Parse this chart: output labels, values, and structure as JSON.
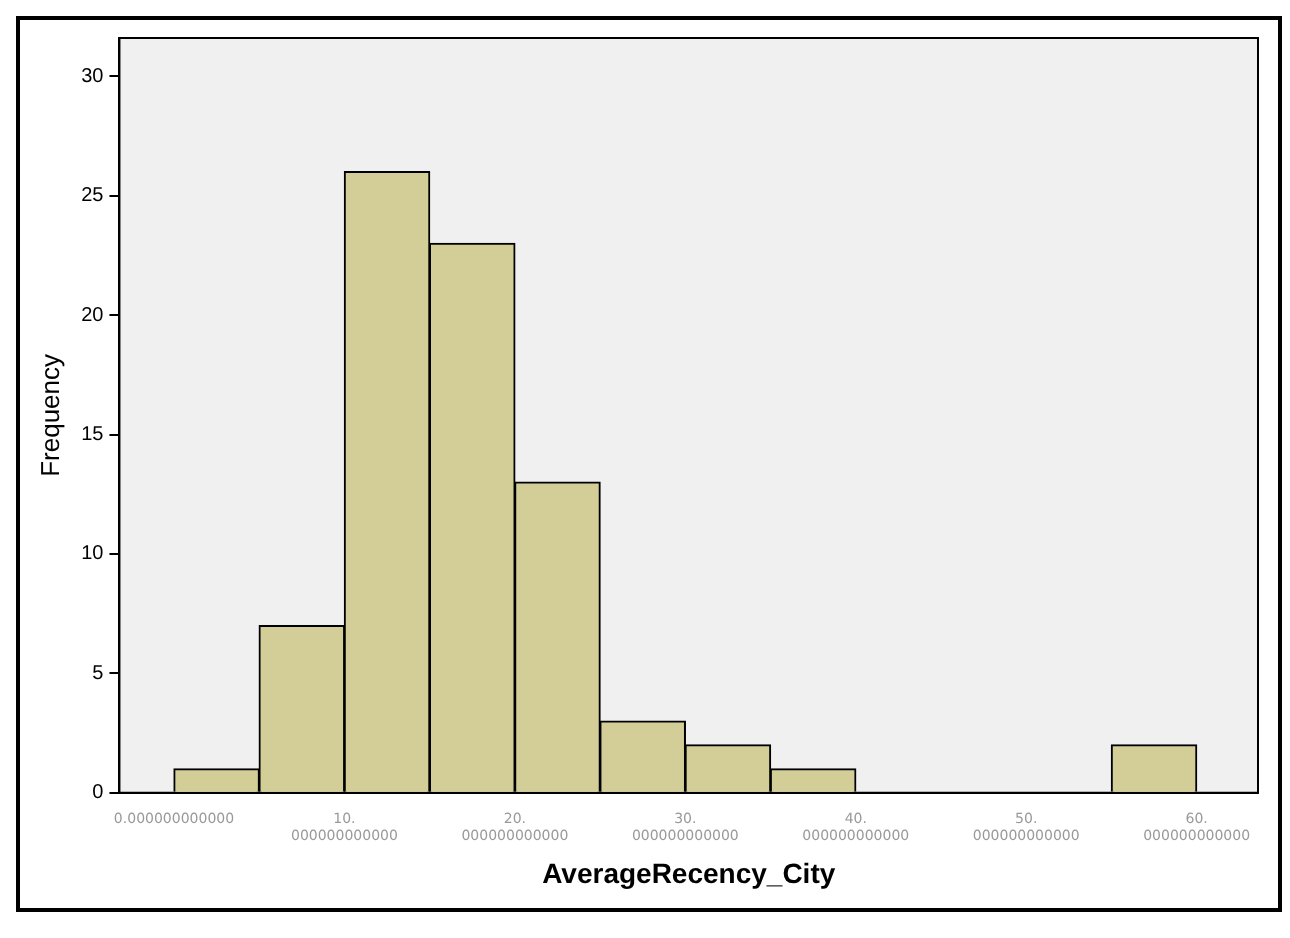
{
  "chart_data": {
    "type": "histogram",
    "xlabel": "AverageRecency_City",
    "ylabel": "Frequency",
    "bins": [
      0,
      5,
      10,
      15,
      20,
      25,
      30,
      35,
      40,
      45,
      50,
      55,
      60
    ],
    "values": [
      1,
      7,
      26,
      23,
      13,
      3,
      2,
      1,
      0,
      0,
      0,
      2
    ],
    "color": "#d3ce97",
    "xlim": [
      -3.2,
      63.6
    ],
    "xticks": [
      {
        "value": 0,
        "label": "0.000000000000"
      },
      {
        "value": 10,
        "label": "10.000000000000"
      },
      {
        "value": 20,
        "label": "20.000000000000"
      },
      {
        "value": 30,
        "label": "30.000000000000"
      },
      {
        "value": 40,
        "label": "40.000000000000"
      },
      {
        "value": 50,
        "label": "50.000000000000"
      },
      {
        "value": 60,
        "label": "60.000000000000"
      }
    ],
    "ylim": [
      0,
      31.6
    ],
    "yticks": [
      0,
      5,
      10,
      15,
      20,
      25,
      30
    ],
    "grid": false,
    "legend": false
  }
}
